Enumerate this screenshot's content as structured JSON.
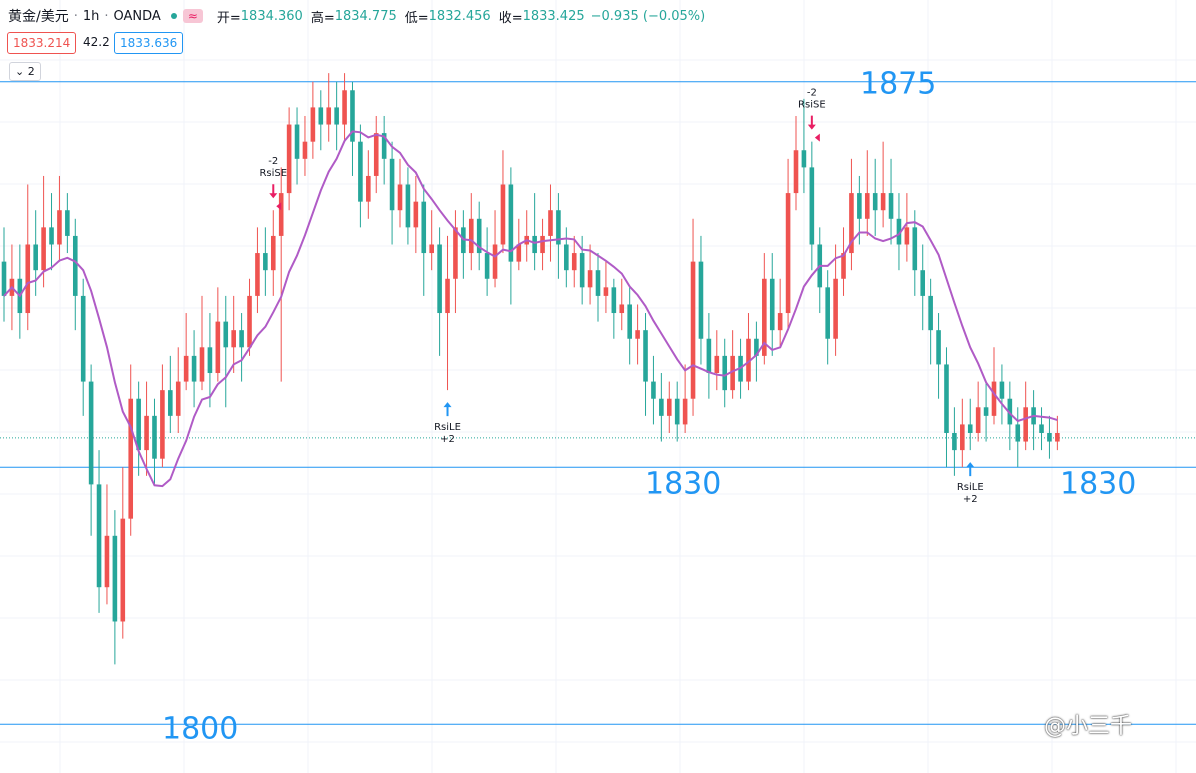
{
  "header": {
    "symbol": "黄金/美元",
    "interval": "1h",
    "exchange": "OANDA",
    "badge": "≈",
    "open_label": "开=",
    "open": "1834.360",
    "high_label": "高=",
    "high": "1834.775",
    "low_label": "低=",
    "low": "1832.456",
    "close_label": "收=",
    "close": "1833.425",
    "change": "−0.935 (−0.05%)"
  },
  "price_boxes": {
    "bid": "1833.214",
    "spread": "42.2",
    "ask": "1833.636"
  },
  "indicator_toggle": "2",
  "watermark": "@小三千",
  "colors": {
    "up": "#ef5350",
    "down": "#26a69a",
    "ma": "#b05bc6",
    "level": "#2196f3"
  },
  "chart_data": {
    "type": "candlestick",
    "price_range": [
      1797.0,
      1878.0
    ],
    "series_note": "",
    "levels": [
      {
        "value": 1875,
        "label": "1875"
      },
      {
        "value": 1830,
        "label": "1830"
      },
      {
        "value": 1800,
        "label": "1800"
      }
    ],
    "extra_level_label": "1830",
    "current_price": 1833.43,
    "signals": [
      {
        "index": 34,
        "type": "short",
        "count": "-2",
        "name": "RsiSE"
      },
      {
        "index": 56,
        "type": "long",
        "name": "RsiLE",
        "count": "+2"
      },
      {
        "index": 102,
        "type": "short",
        "count": "-2",
        "name": "RsiSE"
      },
      {
        "index": 122,
        "type": "long",
        "name": "RsiLE",
        "count": "+2"
      }
    ],
    "candles": [
      [
        1854,
        1850,
        1858,
        1847
      ],
      [
        1850,
        1852,
        1856,
        1846
      ],
      [
        1852,
        1848,
        1856,
        1845
      ],
      [
        1848,
        1856,
        1863,
        1846
      ],
      [
        1856,
        1853,
        1860,
        1850
      ],
      [
        1853,
        1858,
        1864,
        1851
      ],
      [
        1858,
        1856,
        1862,
        1853
      ],
      [
        1856,
        1860,
        1864,
        1854
      ],
      [
        1860,
        1857,
        1862,
        1855
      ],
      [
        1857,
        1850,
        1859,
        1846
      ],
      [
        1850,
        1840,
        1852,
        1836
      ],
      [
        1840,
        1828,
        1842,
        1822
      ],
      [
        1828,
        1816,
        1832,
        1813
      ],
      [
        1816,
        1822,
        1828,
        1814
      ],
      [
        1822,
        1812,
        1825,
        1807
      ],
      [
        1812,
        1824,
        1830,
        1810
      ],
      [
        1824,
        1838,
        1842,
        1822
      ],
      [
        1838,
        1832,
        1840,
        1829
      ],
      [
        1832,
        1836,
        1840,
        1829
      ],
      [
        1836,
        1831,
        1838,
        1828
      ],
      [
        1831,
        1839,
        1842,
        1830
      ],
      [
        1839,
        1836,
        1843,
        1834
      ],
      [
        1836,
        1840,
        1844,
        1834
      ],
      [
        1840,
        1843,
        1848,
        1839
      ],
      [
        1843,
        1840,
        1846,
        1837
      ],
      [
        1840,
        1844,
        1850,
        1839
      ],
      [
        1844,
        1841,
        1848,
        1837
      ],
      [
        1841,
        1847,
        1851,
        1840
      ],
      [
        1847,
        1844,
        1850,
        1837
      ],
      [
        1844,
        1846,
        1850,
        1841
      ],
      [
        1846,
        1844,
        1848,
        1840
      ],
      [
        1844,
        1850,
        1852,
        1843
      ],
      [
        1850,
        1855,
        1858,
        1848
      ],
      [
        1855,
        1853,
        1858,
        1850
      ],
      [
        1853,
        1857,
        1860,
        1850
      ],
      [
        1857,
        1862,
        1865,
        1840
      ],
      [
        1862,
        1870,
        1872,
        1860
      ],
      [
        1870,
        1866,
        1872,
        1863
      ],
      [
        1866,
        1868,
        1871,
        1864
      ],
      [
        1868,
        1872,
        1875,
        1866
      ],
      [
        1872,
        1870,
        1874,
        1867
      ],
      [
        1870,
        1872,
        1876,
        1868
      ],
      [
        1872,
        1870,
        1875,
        1867
      ],
      [
        1870,
        1874,
        1876,
        1868
      ],
      [
        1874,
        1868,
        1875,
        1864
      ],
      [
        1868,
        1861,
        1870,
        1858
      ],
      [
        1861,
        1864,
        1867,
        1859
      ],
      [
        1864,
        1869,
        1871,
        1862
      ],
      [
        1869,
        1866,
        1871,
        1863
      ],
      [
        1866,
        1860,
        1868,
        1856
      ],
      [
        1860,
        1863,
        1866,
        1858
      ],
      [
        1863,
        1858,
        1865,
        1856
      ],
      [
        1858,
        1861,
        1864,
        1855
      ],
      [
        1861,
        1855,
        1863,
        1850
      ],
      [
        1855,
        1856,
        1860,
        1853
      ],
      [
        1856,
        1848,
        1858,
        1843
      ],
      [
        1848,
        1852,
        1857,
        1839
      ],
      [
        1852,
        1858,
        1860,
        1848
      ],
      [
        1858,
        1855,
        1860,
        1852
      ],
      [
        1855,
        1859,
        1862,
        1853
      ],
      [
        1859,
        1855,
        1861,
        1853
      ],
      [
        1855,
        1852,
        1858,
        1850
      ],
      [
        1852,
        1856,
        1860,
        1851
      ],
      [
        1856,
        1863,
        1867,
        1855
      ],
      [
        1863,
        1854,
        1865,
        1849
      ],
      [
        1854,
        1856,
        1859,
        1853
      ],
      [
        1856,
        1857,
        1860,
        1854
      ],
      [
        1857,
        1855,
        1862,
        1853
      ],
      [
        1855,
        1857,
        1859,
        1853
      ],
      [
        1857,
        1860,
        1863,
        1854
      ],
      [
        1860,
        1856,
        1862,
        1852
      ],
      [
        1856,
        1853,
        1858,
        1851
      ],
      [
        1853,
        1855,
        1857,
        1851
      ],
      [
        1855,
        1851,
        1857,
        1849
      ],
      [
        1851,
        1853,
        1856,
        1849
      ],
      [
        1853,
        1850,
        1855,
        1847
      ],
      [
        1850,
        1851,
        1854,
        1848
      ],
      [
        1851,
        1848,
        1852,
        1845
      ],
      [
        1848,
        1849,
        1852,
        1846
      ],
      [
        1849,
        1845,
        1851,
        1842
      ],
      [
        1845,
        1846,
        1849,
        1842
      ],
      [
        1846,
        1840,
        1848,
        1836
      ],
      [
        1840,
        1838,
        1843,
        1835
      ],
      [
        1838,
        1836,
        1841,
        1833
      ],
      [
        1836,
        1838,
        1840,
        1834
      ],
      [
        1838,
        1835,
        1840,
        1833
      ],
      [
        1835,
        1838,
        1842,
        1834
      ],
      [
        1838,
        1854,
        1859,
        1836
      ],
      [
        1854,
        1845,
        1857,
        1842
      ],
      [
        1845,
        1841,
        1848,
        1838
      ],
      [
        1841,
        1843,
        1846,
        1839
      ],
      [
        1843,
        1839,
        1845,
        1837
      ],
      [
        1839,
        1843,
        1846,
        1838
      ],
      [
        1843,
        1840,
        1845,
        1838
      ],
      [
        1840,
        1845,
        1848,
        1839
      ],
      [
        1845,
        1843,
        1847,
        1840
      ],
      [
        1843,
        1852,
        1855,
        1842
      ],
      [
        1852,
        1846,
        1855,
        1843
      ],
      [
        1846,
        1848,
        1852,
        1844
      ],
      [
        1848,
        1862,
        1866,
        1846
      ],
      [
        1862,
        1867,
        1871,
        1860
      ],
      [
        1867,
        1865,
        1873,
        1862
      ],
      [
        1865,
        1856,
        1868,
        1853
      ],
      [
        1856,
        1851,
        1858,
        1848
      ],
      [
        1851,
        1845,
        1853,
        1842
      ],
      [
        1845,
        1852,
        1856,
        1843
      ],
      [
        1852,
        1855,
        1858,
        1850
      ],
      [
        1855,
        1862,
        1866,
        1853
      ],
      [
        1862,
        1859,
        1864,
        1856
      ],
      [
        1859,
        1862,
        1867,
        1857
      ],
      [
        1862,
        1860,
        1866,
        1857
      ],
      [
        1860,
        1862,
        1868,
        1858
      ],
      [
        1862,
        1859,
        1866,
        1856
      ],
      [
        1859,
        1856,
        1862,
        1853
      ],
      [
        1856,
        1858,
        1862,
        1854
      ],
      [
        1858,
        1853,
        1860,
        1850
      ],
      [
        1853,
        1850,
        1856,
        1846
      ],
      [
        1850,
        1846,
        1852,
        1842
      ],
      [
        1846,
        1842,
        1848,
        1838
      ],
      [
        1842,
        1834,
        1844,
        1830
      ],
      [
        1834,
        1832,
        1837,
        1829
      ],
      [
        1832,
        1835,
        1838,
        1830
      ],
      [
        1835,
        1834,
        1838,
        1832
      ],
      [
        1834,
        1837,
        1840,
        1833
      ],
      [
        1837,
        1836,
        1840,
        1833
      ],
      [
        1836,
        1840,
        1844,
        1835
      ],
      [
        1840,
        1838,
        1842,
        1835
      ],
      [
        1838,
        1835,
        1840,
        1832
      ],
      [
        1835,
        1833,
        1837,
        1830
      ],
      [
        1833,
        1837,
        1840,
        1832
      ],
      [
        1837,
        1835,
        1839,
        1832
      ],
      [
        1835,
        1834,
        1837,
        1832
      ],
      [
        1834,
        1833,
        1836,
        1831
      ],
      [
        1833,
        1834,
        1836,
        1832
      ]
    ]
  }
}
